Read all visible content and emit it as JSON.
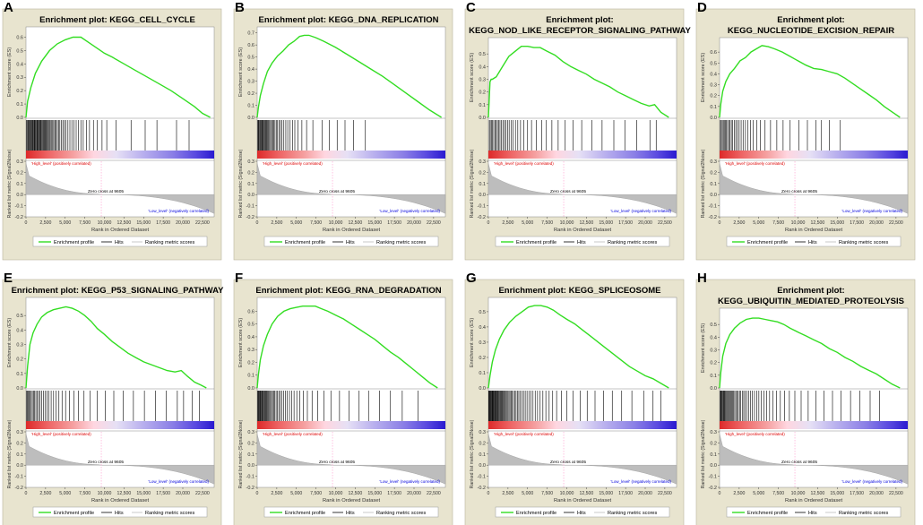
{
  "figure": {
    "common": {
      "es_ylabel": "Enrichment score (ES)",
      "metric_ylabel": "Ranked list metric (Signal2Noise)",
      "xlabel": "Rank in Ordered Dataset",
      "high_label": "'High_level' (positively correlated)",
      "low_label": "'Low_level' (negatively correlated)",
      "zero_cross_label": "Zero cross at 9605",
      "legend": [
        "Enrichment profile",
        "Hits",
        "Ranking metric scores"
      ],
      "x_ticks": [
        "0",
        "2,500",
        "5,000",
        "7,500",
        "10,000",
        "12,500",
        "15,000",
        "17,500",
        "20,000",
        "22,500"
      ],
      "metric_ticks": [
        "0.3",
        "0.2",
        "0.1",
        "0.0",
        "-0.1",
        "-0.2"
      ],
      "colors": {
        "panel_bg": "#e8e4cf",
        "curve": "#33dd22",
        "hits": "#000000",
        "metric_fill": "#bdbdbd",
        "zero_line": "#ff99cc",
        "high_text": "#dd0000",
        "low_text": "#0000dd",
        "bar_gradient": [
          "#dd2a2a",
          "#ee6666",
          "#f5a0a0",
          "#ffd6e0",
          "#e6e0f5",
          "#b9b0ee",
          "#8a7ee6",
          "#5a4ae0",
          "#2a1ad0"
        ]
      }
    }
  },
  "chart_data": [
    {
      "type": "line",
      "panel_label": "A",
      "title_lines": [
        "Enrichment plot: KEGG_CELL_CYCLE"
      ],
      "ylabel": "Enrichment score (ES)",
      "xlabel": "Rank in Ordered Dataset",
      "y_ticks": [
        "0.6",
        "0.5",
        "0.4",
        "0.3",
        "0.2",
        "0.1",
        "0.0"
      ],
      "ylim": [
        0.0,
        0.65
      ],
      "xlim": [
        0,
        24000
      ],
      "es_curve": {
        "x": [
          0,
          200,
          600,
          1200,
          2000,
          3000,
          4000,
          5000,
          6000,
          7000,
          8000,
          9000,
          10000,
          11000,
          12500,
          14000,
          15500,
          17000,
          18500,
          20000,
          21500,
          22500,
          23500
        ],
        "y": [
          0.0,
          0.12,
          0.22,
          0.33,
          0.42,
          0.5,
          0.55,
          0.58,
          0.6,
          0.6,
          0.56,
          0.52,
          0.48,
          0.45,
          0.4,
          0.35,
          0.3,
          0.25,
          0.2,
          0.14,
          0.08,
          0.03,
          0.0
        ]
      },
      "hit_ranks": [
        80,
        150,
        260,
        350,
        450,
        520,
        610,
        700,
        800,
        880,
        960,
        1050,
        1130,
        1220,
        1300,
        1400,
        1480,
        1560,
        1650,
        1740,
        1830,
        1920,
        2000,
        2100,
        2200,
        2300,
        2400,
        2500,
        2600,
        2700,
        2820,
        2940,
        3050,
        3180,
        3300,
        3420,
        3550,
        3700,
        3850,
        4000,
        4150,
        4320,
        4500,
        4700,
        4900,
        5100,
        5350,
        5600,
        5850,
        6100,
        6400,
        6700,
        7000,
        7300,
        7700,
        8100,
        8600,
        9100,
        9700,
        10300,
        11500,
        13400,
        15200,
        16700,
        19200,
        20800
      ],
      "metric_annotation": "Zero cross at 9605",
      "zero_cross_rank": 9605,
      "legend": [
        "Enrichment profile",
        "Hits",
        "Ranking metric scores"
      ]
    },
    {
      "type": "line",
      "panel_label": "B",
      "title_lines": [
        "Enrichment plot: KEGG_DNA_REPLICATION"
      ],
      "ylabel": "Enrichment score (ES)",
      "xlabel": "Rank in Ordered Dataset",
      "y_ticks": [
        "0.7",
        "0.6",
        "0.5",
        "0.4",
        "0.3",
        "0.2",
        "0.1",
        "0.0"
      ],
      "ylim": [
        0.0,
        0.72
      ],
      "xlim": [
        0,
        24000
      ],
      "es_curve": {
        "x": [
          0,
          150,
          400,
          800,
          1300,
          1900,
          2600,
          3300,
          4000,
          4700,
          5400,
          6000,
          6600,
          7500,
          8500,
          10000,
          11500,
          13000,
          14500,
          16000,
          17500,
          19000,
          20500,
          22000,
          23500
        ],
        "y": [
          0.0,
          0.08,
          0.18,
          0.28,
          0.38,
          0.45,
          0.51,
          0.55,
          0.6,
          0.63,
          0.67,
          0.68,
          0.68,
          0.66,
          0.63,
          0.58,
          0.52,
          0.46,
          0.4,
          0.34,
          0.27,
          0.2,
          0.13,
          0.06,
          0.0
        ]
      },
      "hit_ranks": [
        60,
        140,
        220,
        330,
        420,
        500,
        590,
        680,
        770,
        860,
        950,
        1050,
        1150,
        1250,
        1360,
        1470,
        1590,
        1720,
        1850,
        1980,
        2120,
        2270,
        2430,
        2600,
        2780,
        2970,
        3170,
        3400,
        3650,
        3900,
        4200,
        4500,
        4800,
        5200,
        5700,
        6300,
        7100,
        8300,
        9200,
        10200,
        11200,
        12300,
        13800
      ],
      "metric_annotation": "Zero cross at 9605",
      "zero_cross_rank": 9605,
      "legend": [
        "Enrichment profile",
        "Hits",
        "Ranking metric scores"
      ]
    },
    {
      "type": "line",
      "panel_label": "C",
      "title_lines": [
        "Enrichment plot:",
        "KEGG_NOD_LIKE_RECEPTOR_SIGNALING_PATHWAY"
      ],
      "ylabel": "Enrichment score (ES)",
      "xlabel": "Rank in Ordered Dataset",
      "y_ticks": [
        "0.5",
        "0.4",
        "0.3",
        "0.2",
        "0.1",
        "0.0"
      ],
      "ylim": [
        0.0,
        0.6
      ],
      "xlim": [
        0,
        24000
      ],
      "es_curve": {
        "x": [
          0,
          200,
          350,
          500,
          1000,
          1800,
          2600,
          3400,
          4200,
          5000,
          5800,
          6600,
          7500,
          8500,
          9500,
          10500,
          11500,
          12500,
          13500,
          14500,
          15500,
          16500,
          17500,
          18500,
          19500,
          20500,
          21200,
          22000,
          23000
        ],
        "y": [
          0.0,
          0.28,
          0.3,
          0.3,
          0.32,
          0.4,
          0.48,
          0.52,
          0.56,
          0.56,
          0.55,
          0.55,
          0.52,
          0.49,
          0.44,
          0.4,
          0.37,
          0.34,
          0.3,
          0.27,
          0.24,
          0.2,
          0.17,
          0.14,
          0.11,
          0.09,
          0.1,
          0.04,
          0.0
        ]
      },
      "hit_ranks": [
        120,
        240,
        380,
        520,
        680,
        850,
        1000,
        1150,
        1300,
        1480,
        1650,
        1850,
        2050,
        2250,
        2450,
        2650,
        2900,
        3150,
        3450,
        3750,
        4100,
        4500,
        5000,
        5500,
        6100,
        6800,
        7400,
        8100,
        8900,
        9800,
        10800,
        11900,
        13200,
        14500,
        16000,
        17400,
        18900,
        20600,
        21400
      ],
      "metric_annotation": "Zero cross at 9605",
      "zero_cross_rank": 9605,
      "legend": [
        "Enrichment profile",
        "Hits",
        "Ranking metric scores"
      ]
    },
    {
      "type": "line",
      "panel_label": "D",
      "title_lines": [
        "Enrichment plot:",
        "KEGG_NUCLEOTIDE_EXCISION_REPAIR"
      ],
      "ylabel": "Enrichment score (ES)",
      "xlabel": "Rank in Ordered Dataset",
      "y_ticks": [
        "0.6",
        "0.5",
        "0.4",
        "0.3",
        "0.2",
        "0.1",
        "0.0"
      ],
      "ylim": [
        0.0,
        0.7
      ],
      "xlim": [
        0,
        24000
      ],
      "es_curve": {
        "x": [
          0,
          150,
          400,
          800,
          1300,
          1900,
          2600,
          3300,
          4000,
          4700,
          5400,
          6200,
          7000,
          8000,
          9000,
          10000,
          11000,
          12000,
          13000,
          14000,
          15000,
          16000,
          17000,
          18000,
          19000,
          20000,
          21000,
          22000,
          23000
        ],
        "y": [
          0.0,
          0.12,
          0.24,
          0.33,
          0.4,
          0.45,
          0.52,
          0.55,
          0.6,
          0.63,
          0.66,
          0.65,
          0.63,
          0.6,
          0.56,
          0.52,
          0.48,
          0.45,
          0.44,
          0.42,
          0.4,
          0.36,
          0.31,
          0.26,
          0.21,
          0.16,
          0.1,
          0.05,
          0.0
        ]
      },
      "hit_ranks": [
        100,
        220,
        350,
        480,
        600,
        740,
        880,
        1020,
        1170,
        1330,
        1500,
        1680,
        1870,
        2070,
        2280,
        2500,
        2750,
        3000,
        3300,
        3600,
        3950,
        4300,
        4750,
        5200,
        5800,
        6500,
        7300,
        8100,
        9000,
        10100,
        11200,
        12300,
        13000,
        14000,
        15400
      ],
      "metric_annotation": "Zero cross at 9605",
      "zero_cross_rank": 9605,
      "legend": [
        "Enrichment profile",
        "Hits",
        "Ranking metric scores"
      ]
    },
    {
      "type": "line",
      "panel_label": "E",
      "title_lines": [
        "Enrichment plot: KEGG_P53_SIGNALING_PATHWAY"
      ],
      "ylabel": "Enrichment score (ES)",
      "xlabel": "Rank in Ordered Dataset",
      "y_ticks": [
        "0.5",
        "0.4",
        "0.3",
        "0.2",
        "0.1",
        "0.0"
      ],
      "ylim": [
        0.0,
        0.6
      ],
      "xlim": [
        0,
        24000
      ],
      "es_curve": {
        "x": [
          0,
          200,
          500,
          900,
          1400,
          2000,
          2700,
          3500,
          4300,
          5100,
          5900,
          6700,
          7500,
          8300,
          9100,
          10000,
          11000,
          12000,
          13000,
          14000,
          15000,
          16000,
          17000,
          18000,
          19000,
          19800,
          20600,
          21500,
          22300,
          23000
        ],
        "y": [
          0.0,
          0.15,
          0.3,
          0.38,
          0.44,
          0.49,
          0.52,
          0.54,
          0.55,
          0.56,
          0.55,
          0.53,
          0.5,
          0.46,
          0.41,
          0.37,
          0.32,
          0.28,
          0.24,
          0.21,
          0.18,
          0.16,
          0.14,
          0.12,
          0.11,
          0.12,
          0.08,
          0.04,
          0.02,
          0.0
        ]
      },
      "hit_ranks": [
        90,
        190,
        300,
        420,
        540,
        670,
        810,
        950,
        1100,
        1260,
        1430,
        1610,
        1800,
        2000,
        2210,
        2430,
        2670,
        2930,
        3210,
        3520,
        3850,
        4200,
        4600,
        5050,
        5550,
        6100,
        6700,
        7400,
        8200,
        9100,
        10100,
        11200,
        12400,
        13700,
        15100,
        16500,
        17900,
        19300,
        20100,
        21200,
        22100
      ],
      "metric_annotation": "Zero cross at 9605",
      "zero_cross_rank": 9605,
      "legend": [
        "Enrichment profile",
        "Hits",
        "Ranking metric scores"
      ]
    },
    {
      "type": "line",
      "panel_label": "F",
      "title_lines": [
        "Enrichment plot: KEGG_RNA_DEGRADATION"
      ],
      "ylabel": "Enrichment score (ES)",
      "xlabel": "Rank in Ordered Dataset",
      "y_ticks": [
        "0.6",
        "0.5",
        "0.4",
        "0.3",
        "0.2",
        "0.1",
        "0.0"
      ],
      "ylim": [
        0.0,
        0.68
      ],
      "xlim": [
        0,
        24000
      ],
      "es_curve": {
        "x": [
          0,
          150,
          400,
          800,
          1300,
          1900,
          2600,
          3400,
          4200,
          5000,
          5800,
          6600,
          7400,
          8200,
          9000,
          10000,
          11000,
          12000,
          13000,
          14000,
          15000,
          16000,
          17000,
          18000,
          19000,
          20000,
          21000,
          22000,
          23000
        ],
        "y": [
          0.0,
          0.1,
          0.22,
          0.33,
          0.42,
          0.5,
          0.56,
          0.6,
          0.62,
          0.63,
          0.64,
          0.64,
          0.64,
          0.62,
          0.6,
          0.57,
          0.54,
          0.5,
          0.46,
          0.42,
          0.38,
          0.33,
          0.28,
          0.24,
          0.19,
          0.14,
          0.09,
          0.04,
          0.0
        ]
      },
      "hit_ranks": [
        50,
        120,
        190,
        270,
        350,
        430,
        510,
        590,
        680,
        770,
        860,
        950,
        1040,
        1140,
        1240,
        1350,
        1460,
        1580,
        1700,
        1830,
        1960,
        2100,
        2250,
        2410,
        2580,
        2760,
        2950,
        3150,
        3370,
        3600,
        3850,
        4120,
        4400,
        4700,
        5050,
        5450,
        5900,
        6400,
        7000,
        7700,
        8500,
        9400,
        10500,
        11700,
        13000,
        14200,
        15600,
        17000,
        18500,
        20500
      ],
      "metric_annotation": "Zero cross at 9605",
      "zero_cross_rank": 9605,
      "legend": [
        "Enrichment profile",
        "Hits",
        "Ranking metric scores"
      ]
    },
    {
      "type": "line",
      "panel_label": "G",
      "title_lines": [
        "Enrichment plot: KEGG_SPLICEOSOME"
      ],
      "ylabel": "Enrichment score (ES)",
      "xlabel": "Rank in Ordered Dataset",
      "y_ticks": [
        "0.5",
        "0.4",
        "0.3",
        "0.2",
        "0.1",
        "0.0"
      ],
      "ylim": [
        0.0,
        0.57
      ],
      "xlim": [
        0,
        24000
      ],
      "es_curve": {
        "x": [
          0,
          200,
          500,
          900,
          1400,
          2000,
          2700,
          3500,
          4300,
          5100,
          5900,
          6700,
          7500,
          8300,
          9100,
          10000,
          11000,
          12000,
          13000,
          14000,
          15000,
          16000,
          17000,
          18000,
          19000,
          20000,
          21000,
          22000,
          23000
        ],
        "y": [
          0.0,
          0.08,
          0.17,
          0.25,
          0.32,
          0.38,
          0.43,
          0.47,
          0.5,
          0.53,
          0.54,
          0.54,
          0.53,
          0.51,
          0.48,
          0.45,
          0.42,
          0.38,
          0.34,
          0.3,
          0.26,
          0.22,
          0.18,
          0.14,
          0.11,
          0.08,
          0.06,
          0.03,
          0.0
        ]
      },
      "hit_ranks": [
        40,
        100,
        160,
        220,
        280,
        340,
        400,
        470,
        540,
        610,
        680,
        750,
        830,
        910,
        990,
        1070,
        1150,
        1240,
        1330,
        1420,
        1510,
        1610,
        1710,
        1810,
        1920,
        2030,
        2140,
        2260,
        2380,
        2500,
        2630,
        2760,
        2900,
        3050,
        3200,
        3360,
        3530,
        3700,
        3880,
        4070,
        4270,
        4480,
        4700,
        4930,
        5170,
        5420,
        5690,
        5970,
        6270,
        6600,
        6950,
        7330,
        7750,
        8200,
        8700,
        9300,
        10000,
        10800,
        11700,
        12600,
        13600,
        14700,
        15800,
        17000,
        18300,
        19800,
        21000,
        22000
      ],
      "metric_annotation": "Zero cross at 9605",
      "zero_cross_rank": 9605,
      "legend": [
        "Enrichment profile",
        "Hits",
        "Ranking metric scores"
      ]
    },
    {
      "type": "line",
      "panel_label": "H",
      "title_lines": [
        "Enrichment plot:",
        "KEGG_UBIQUITIN_MEDIATED_PROTEOLYSIS"
      ],
      "ylabel": "Enrichment score (ES)",
      "xlabel": "Rank in Ordered Dataset",
      "y_ticks": [
        "0.5",
        "0.4",
        "0.3",
        "0.2",
        "0.1",
        "0.0"
      ],
      "ylim": [
        0.0,
        0.6
      ],
      "xlim": [
        0,
        24000
      ],
      "es_curve": {
        "x": [
          0,
          150,
          400,
          800,
          1300,
          1900,
          2600,
          3400,
          4200,
          5000,
          5800,
          6600,
          7400,
          8200,
          9000,
          10000,
          11000,
          12000,
          13000,
          14000,
          15000,
          16000,
          17000,
          18000,
          19000,
          20000,
          21000,
          22000,
          23000
        ],
        "y": [
          0.0,
          0.12,
          0.25,
          0.35,
          0.42,
          0.47,
          0.51,
          0.54,
          0.55,
          0.55,
          0.54,
          0.53,
          0.52,
          0.5,
          0.47,
          0.44,
          0.41,
          0.38,
          0.35,
          0.31,
          0.28,
          0.24,
          0.21,
          0.17,
          0.14,
          0.11,
          0.07,
          0.03,
          0.0
        ]
      },
      "hit_ranks": [
        60,
        140,
        220,
        300,
        390,
        480,
        570,
        660,
        760,
        860,
        960,
        1070,
        1180,
        1290,
        1410,
        1530,
        1660,
        1790,
        1930,
        2070,
        2220,
        2380,
        2540,
        2710,
        2890,
        3080,
        3280,
        3490,
        3710,
        3940,
        4190,
        4450,
        4720,
        5010,
        5320,
        5650,
        6000,
        6380,
        6800,
        7250,
        7750,
        8300,
        8900,
        9600,
        10400,
        11300,
        12300,
        13300,
        14400,
        15500,
        16700,
        17900,
        19200,
        20400
      ],
      "metric_annotation": "Zero cross at 9605",
      "zero_cross_rank": 9605,
      "legend": [
        "Enrichment profile",
        "Hits",
        "Ranking metric scores"
      ]
    }
  ]
}
